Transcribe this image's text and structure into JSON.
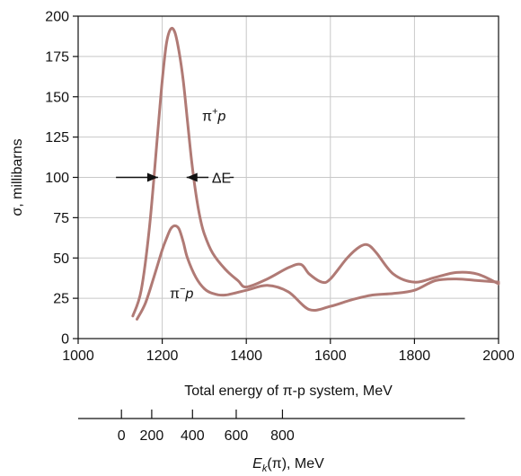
{
  "chart_data": {
    "type": "line",
    "title": "",
    "xlabel": "Total energy of π-p system, MeV",
    "ylabel": "σ, millibarns",
    "xlim": [
      1000,
      2000
    ],
    "ylim": [
      0,
      200
    ],
    "xticks": [
      1000,
      1200,
      1400,
      1600,
      1800,
      2000
    ],
    "yticks": [
      0,
      25,
      50,
      75,
      100,
      125,
      150,
      175,
      200
    ],
    "grid": true,
    "line_color": "#b07a75",
    "series": [
      {
        "name": "π⁺p",
        "label_base": "π",
        "label_sup": "+",
        "label_end": "p",
        "label_at": {
          "x": 1295,
          "y": 135
        },
        "x": [
          1130,
          1150,
          1170,
          1190,
          1200,
          1210,
          1220,
          1230,
          1240,
          1250,
          1260,
          1270,
          1280,
          1290,
          1300,
          1320,
          1350,
          1380,
          1400,
          1450,
          1500,
          1530,
          1550,
          1580,
          1600,
          1640,
          1670,
          1690,
          1710,
          1750,
          1800,
          1850,
          1900,
          1950,
          2000
        ],
        "y": [
          14,
          30,
          70,
          130,
          160,
          183,
          192,
          190,
          178,
          160,
          135,
          110,
          90,
          75,
          65,
          53,
          43,
          36,
          32,
          37,
          44,
          46,
          40,
          35,
          37,
          50,
          57,
          58,
          53,
          40,
          35,
          38,
          41,
          40,
          34
        ]
      },
      {
        "name": "π⁻p",
        "label_base": "π",
        "label_sup": "−",
        "label_end": "p",
        "label_at": {
          "x": 1218,
          "y": 25
        },
        "x": [
          1140,
          1160,
          1180,
          1200,
          1210,
          1220,
          1230,
          1240,
          1250,
          1260,
          1280,
          1300,
          1320,
          1350,
          1400,
          1450,
          1500,
          1550,
          1600,
          1650,
          1700,
          1750,
          1800,
          1850,
          1900,
          1950,
          2000
        ],
        "y": [
          12,
          22,
          38,
          55,
          62,
          68,
          70,
          68,
          60,
          50,
          38,
          31,
          28,
          27,
          30,
          33,
          29,
          18,
          20,
          24,
          27,
          28,
          30,
          36,
          37,
          36,
          35
        ]
      }
    ],
    "annotation": {
      "label": "ΔE",
      "y": 100,
      "left_arrow_from": 1090,
      "left_arrow_to": 1190,
      "right_arrow_from": 1310,
      "right_arrow_to": 1258,
      "label_x": 1318,
      "tail_to": 1360
    },
    "secondary_axis": {
      "label_base": "E",
      "label_sub": "k",
      "label_end": "(π), MeV",
      "ticks": [
        {
          "value": 0,
          "total_energy": 1103
        },
        {
          "value": 200,
          "total_energy": 1175
        },
        {
          "value": 400,
          "total_energy": 1272
        },
        {
          "value": 600,
          "total_energy": 1376
        },
        {
          "value": 800,
          "total_energy": 1486
        }
      ],
      "span": [
        1000,
        1920
      ]
    }
  }
}
